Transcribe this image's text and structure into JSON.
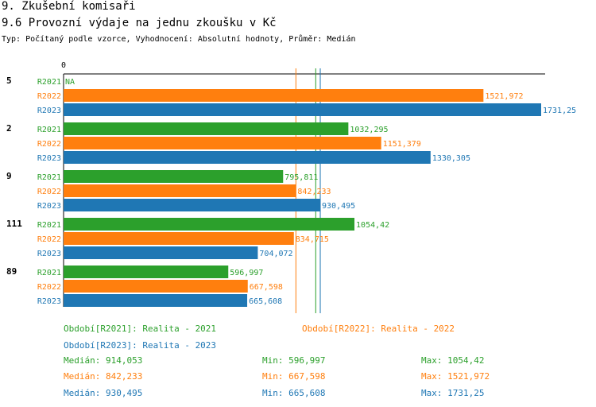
{
  "header": {
    "title": "9. Zkušební komisaři",
    "subtitle": "9.6 Provozní výdaje na jednu zkoušku v Kč",
    "info": "Typ: Počítaný podle vzorce, Vyhodnocení: Absolutní hodnoty, Průměr: Medián"
  },
  "colors": {
    "R2021": "#2ca02c",
    "R2022": "#ff7f0e",
    "R2023": "#1f77b4"
  },
  "chart_data": {
    "type": "bar",
    "orientation": "horizontal",
    "zero_label": "0",
    "xlim": [
      0,
      1731.25
    ],
    "categories": [
      "5",
      "2",
      "9",
      "111",
      "89"
    ],
    "series": [
      {
        "name": "R2021",
        "values": [
          null,
          1032.295,
          795.811,
          1054.42,
          596.997
        ],
        "labels": [
          "NA",
          "1032,295",
          "795,811",
          "1054,42",
          "596,997"
        ]
      },
      {
        "name": "R2022",
        "values": [
          1521.972,
          1151.379,
          842.233,
          834.715,
          667.598
        ],
        "labels": [
          "1521,972",
          "1151,379",
          "842,233",
          "834,715",
          "667,598"
        ]
      },
      {
        "name": "R2023",
        "values": [
          1731.25,
          1330.305,
          930.495,
          704.072,
          665.608
        ],
        "labels": [
          "1731,25",
          "1330,305",
          "930,495",
          "704,072",
          "665,608"
        ]
      }
    ],
    "reference_lines": [
      {
        "series": "R2022",
        "value": 842.233
      },
      {
        "series": "R2021",
        "value": 914.053
      },
      {
        "series": "R2023",
        "value": 930.495
      }
    ]
  },
  "legend": {
    "R2021": "Období[R2021]: Realita - 2021",
    "R2022": "Období[R2022]: Realita - 2022",
    "R2023": "Období[R2023]: Realita - 2023"
  },
  "stats": [
    {
      "series": "R2021",
      "median": "Medián: 914,053",
      "min": "Min: 596,997",
      "max": "Max: 1054,42"
    },
    {
      "series": "R2022",
      "median": "Medián: 842,233",
      "min": "Min: 667,598",
      "max": "Max: 1521,972"
    },
    {
      "series": "R2023",
      "median": "Medián: 930,495",
      "min": "Min: 665,608",
      "max": "Max: 1731,25"
    }
  ]
}
